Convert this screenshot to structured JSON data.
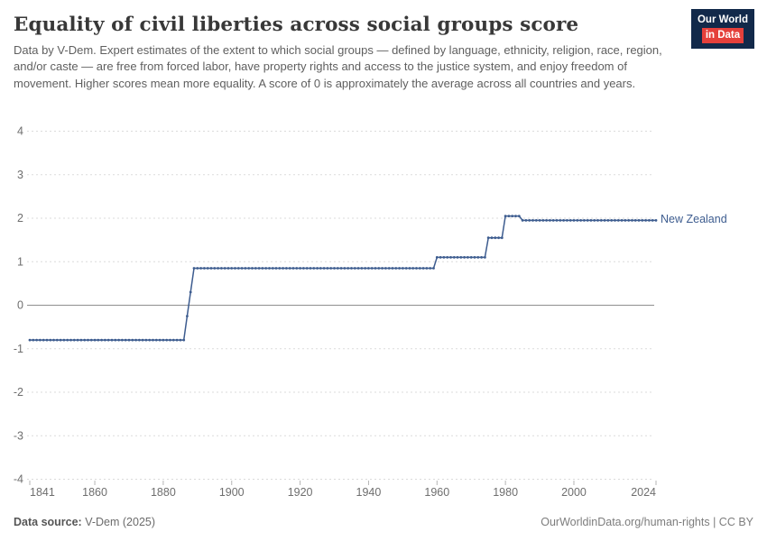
{
  "header": {
    "title": "Equality of civil liberties across social groups score",
    "subtitle": "Data by V-Dem. Expert estimates of the extent to which social groups — defined by language, ethnicity, religion, race, region, and/or caste — are free from forced labor, have property rights and access to the justice system, and enjoy freedom of movement. Higher scores mean more equality. A score of 0 is approximately the average across all countries and years.",
    "logo": {
      "line1": "Our World",
      "line2": "in Data"
    }
  },
  "chart_data": {
    "type": "line",
    "title": "Equality of civil liberties across social groups score",
    "xlabel": "",
    "ylabel": "",
    "xlim": [
      1841,
      2024
    ],
    "ylim": [
      -4,
      4
    ],
    "yticks": [
      -4,
      -3,
      -2,
      -1,
      0,
      1,
      2,
      3,
      4
    ],
    "xticks": [
      1841,
      1860,
      1880,
      1900,
      1920,
      1940,
      1960,
      1980,
      2000,
      2024
    ],
    "grid": "horizontal-dashed",
    "legend_position": "right-end-label",
    "series": [
      {
        "name": "New Zealand",
        "color": "#3d5c8f",
        "marker": "circle",
        "segments": [
          {
            "from": 1841,
            "to": 1886,
            "value": -0.8
          },
          {
            "from": 1889,
            "to": 1959,
            "value": 0.85
          },
          {
            "from": 1960,
            "to": 1974,
            "value": 1.1
          },
          {
            "from": 1975,
            "to": 1979,
            "value": 1.55
          },
          {
            "from": 1980,
            "to": 1984,
            "value": 2.05
          },
          {
            "from": 1985,
            "to": 2024,
            "value": 1.95
          }
        ]
      }
    ]
  },
  "footer": {
    "source_label": "Data source:",
    "source_value": " V-Dem (2025)",
    "credit": "OurWorldinData.org/human-rights | CC BY"
  }
}
